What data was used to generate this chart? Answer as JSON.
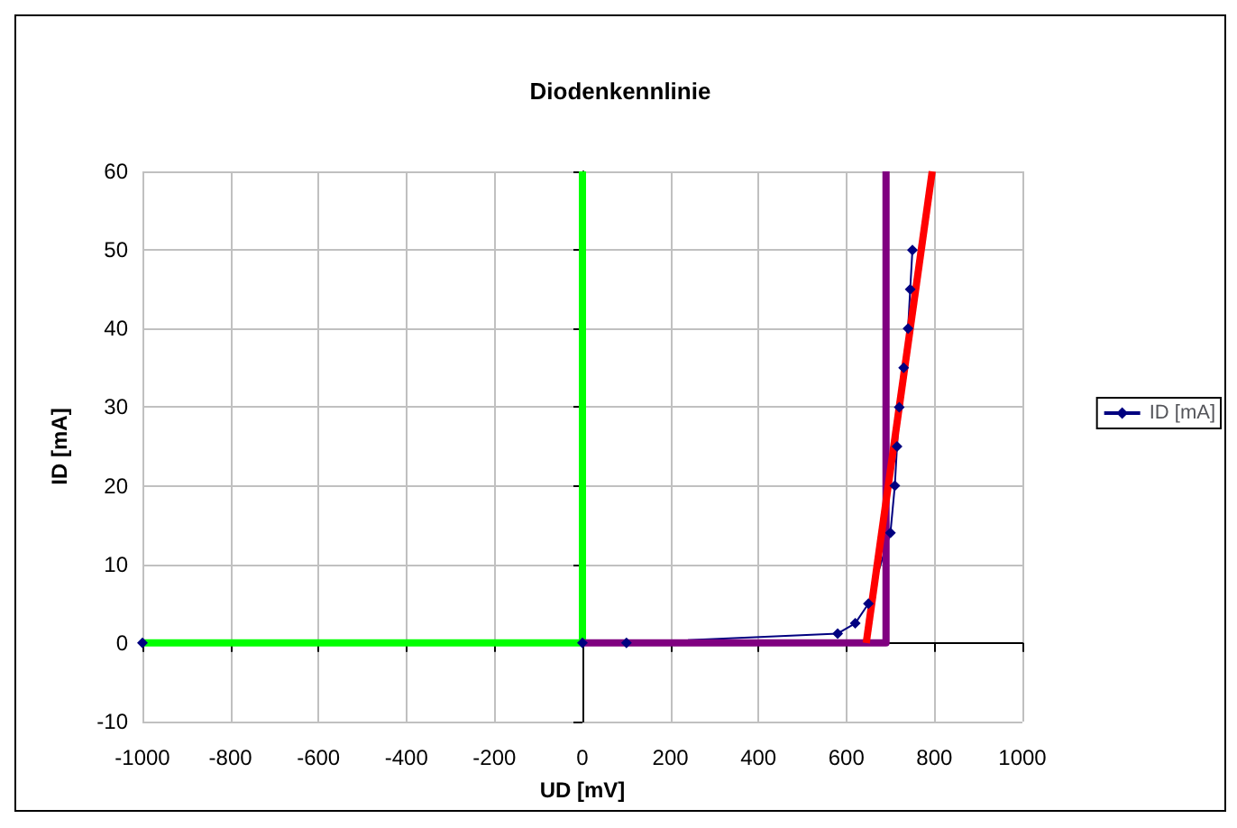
{
  "chart_data": {
    "type": "line",
    "title": "Diodenkennlinie",
    "xlabel": "UD [mV]",
    "ylabel": "ID [mA]",
    "xlim": [
      -1000,
      1000
    ],
    "xticks": [
      -1000,
      -800,
      -600,
      -400,
      -200,
      0,
      200,
      400,
      600,
      800,
      1000
    ],
    "ylim": [
      -10,
      60
    ],
    "yticks": [
      -10,
      0,
      10,
      20,
      30,
      40,
      50,
      60
    ],
    "grid": true,
    "legend": "right",
    "series": [
      {
        "name": "ID [mA]",
        "color": "#000080",
        "marker": "diamond",
        "x": [
          -1000,
          0,
          100,
          580,
          620,
          650,
          700,
          710,
          715,
          720,
          730,
          740,
          745,
          750
        ],
        "values": [
          0,
          0,
          0,
          1.2,
          2.5,
          5,
          14,
          20,
          25,
          30,
          35,
          40,
          45,
          50
        ]
      },
      {
        "color": "#00ff00",
        "marker": "none",
        "x": [
          -1000,
          0,
          0
        ],
        "values": [
          0,
          0,
          60
        ]
      },
      {
        "color": "#800080",
        "marker": "none",
        "x": [
          0,
          690,
          690
        ],
        "values": [
          0,
          0,
          60
        ]
      },
      {
        "color": "#ff0000",
        "marker": "none",
        "x": [
          645,
          795
        ],
        "values": [
          0,
          60
        ]
      }
    ]
  }
}
